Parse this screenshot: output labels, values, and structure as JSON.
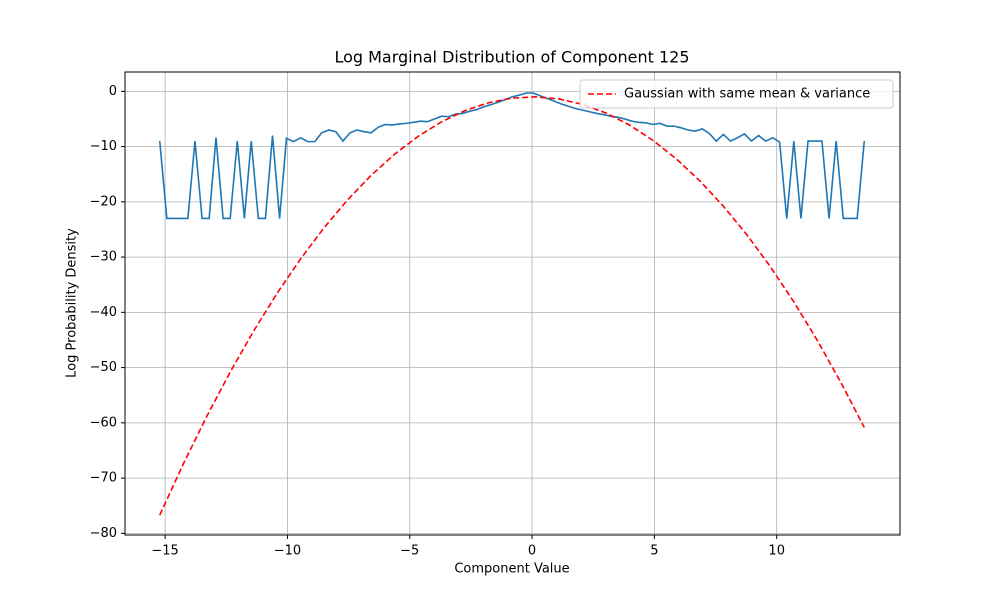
{
  "chart_data": {
    "type": "line",
    "title": "Log Marginal Distribution of Component 125",
    "xlabel": "Component Value",
    "ylabel": "Log Probability Density",
    "xlim": [
      -16.64,
      15.04
    ],
    "ylim": [
      -80.3,
      3.5
    ],
    "xticks": [
      {
        "value": -15,
        "label": "−15"
      },
      {
        "value": -10,
        "label": "−10"
      },
      {
        "value": -5,
        "label": "−5"
      },
      0,
      5,
      10
    ],
    "yticks": [
      {
        "value": -80,
        "label": "−80"
      },
      {
        "value": -70,
        "label": "−70"
      },
      {
        "value": -60,
        "label": "−60"
      },
      {
        "value": -50,
        "label": "−50"
      },
      {
        "value": -40,
        "label": "−40"
      },
      {
        "value": -30,
        "label": "−30"
      },
      {
        "value": -20,
        "label": "−20"
      },
      {
        "value": -10,
        "label": "−10"
      },
      0
    ],
    "grid": true,
    "legend": "upper right",
    "series": [
      {
        "color": "#1f77b4",
        "dash": false,
        "x": [
          -15.22,
          -14.93,
          -14.64,
          -14.36,
          -14.07,
          -13.78,
          -13.49,
          -13.2,
          -12.92,
          -12.63,
          -12.34,
          -12.05,
          -11.76,
          -11.48,
          -11.19,
          -10.9,
          -10.61,
          -10.32,
          -10.04,
          -9.75,
          -9.46,
          -9.17,
          -8.88,
          -8.6,
          -8.31,
          -8.02,
          -7.73,
          -7.44,
          -7.16,
          -6.87,
          -6.58,
          -6.29,
          -6.0,
          -5.72,
          -5.43,
          -5.14,
          -4.85,
          -4.56,
          -4.28,
          -3.99,
          -3.7,
          -3.41,
          -3.12,
          -2.84,
          -2.55,
          -2.26,
          -1.97,
          -1.68,
          -1.4,
          -1.11,
          -0.82,
          -0.53,
          -0.24,
          0.04,
          0.33,
          0.62,
          0.91,
          1.2,
          1.48,
          1.77,
          2.06,
          2.35,
          2.64,
          2.92,
          3.21,
          3.5,
          3.79,
          4.08,
          4.36,
          4.65,
          4.94,
          5.23,
          5.52,
          5.8,
          6.09,
          6.38,
          6.67,
          6.96,
          7.24,
          7.53,
          7.82,
          8.11,
          8.4,
          8.68,
          8.97,
          9.26,
          9.55,
          9.84,
          10.12,
          10.41,
          10.7,
          10.99,
          11.28,
          11.56,
          11.85,
          12.14,
          12.43,
          12.72,
          13.0,
          13.29,
          13.58
        ],
        "values": [
          -9,
          -23,
          -23,
          -23,
          -23,
          -9,
          -23,
          -23,
          -8.4,
          -23,
          -23,
          -9,
          -23,
          -9,
          -23,
          -23,
          -8,
          -23,
          -8.5,
          -9.1,
          -8.4,
          -9.1,
          -9.1,
          -7.5,
          -7.0,
          -7.3,
          -9.0,
          -7.5,
          -7.0,
          -7.3,
          -7.5,
          -6.5,
          -6.0,
          -6.1,
          -5.9,
          -5.8,
          -5.6,
          -5.4,
          -5.5,
          -5.0,
          -4.5,
          -4.6,
          -4.1,
          -4.0,
          -3.6,
          -3.3,
          -2.8,
          -2.4,
          -2.0,
          -1.5,
          -1.0,
          -0.7,
          -0.3,
          -0.3,
          -0.8,
          -1.3,
          -1.8,
          -2.3,
          -2.7,
          -3.1,
          -3.4,
          -3.7,
          -4.0,
          -4.2,
          -4.5,
          -4.7,
          -5.0,
          -5.4,
          -5.6,
          -5.7,
          -6.0,
          -5.8,
          -6.3,
          -6.3,
          -6.6,
          -7.0,
          -7.2,
          -6.8,
          -7.6,
          -9.0,
          -7.8,
          -9.0,
          -8.4,
          -7.7,
          -9.0,
          -8.0,
          -9.0,
          -8.4,
          -9.2,
          -23,
          -9,
          -23,
          -9,
          -9,
          -9,
          -23,
          -9,
          -23,
          -23,
          -23,
          -9
        ]
      },
      {
        "name": "Gaussian with same mean & variance",
        "color": "#ff0000",
        "dash": true,
        "x": [
          -15.22,
          -14.26,
          -13.3,
          -12.34,
          -11.38,
          -10.42,
          -9.46,
          -8.5,
          -7.54,
          -6.58,
          -5.62,
          -4.66,
          -3.7,
          -2.74,
          -1.78,
          -0.82,
          0.14,
          1.1,
          2.06,
          3.02,
          3.98,
          4.94,
          5.9,
          6.86,
          7.82,
          8.78,
          9.74,
          10.7,
          11.66,
          12.62,
          13.58
        ],
        "values": [
          -76.71,
          -67.47,
          -58.84,
          -50.81,
          -43.37,
          -36.54,
          -30.31,
          -24.68,
          -19.64,
          -15.21,
          -11.38,
          -8.15,
          -5.52,
          -3.49,
          -2.06,
          -1.23,
          -1.0,
          -1.38,
          -2.35,
          -3.92,
          -6.09,
          -8.87,
          -12.24,
          -16.21,
          -20.79,
          -25.96,
          -31.73,
          -38.11,
          -45.08,
          -52.66,
          -60.83
        ]
      }
    ]
  }
}
